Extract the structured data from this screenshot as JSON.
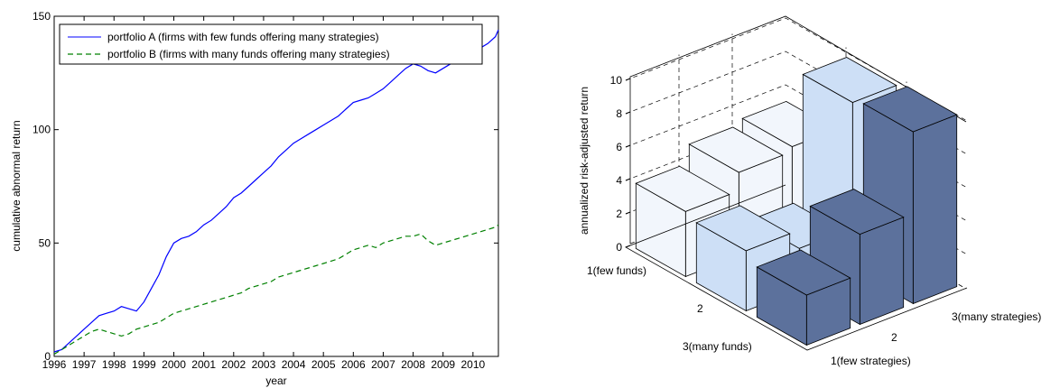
{
  "chart_data": [
    {
      "type": "line",
      "xlabel": "year",
      "ylabel": "cumulative abnormal return",
      "xlim": [
        1996,
        2010.85
      ],
      "ylim": [
        0,
        150
      ],
      "x_ticks": [
        "1996",
        "1997",
        "1998",
        "1999",
        "2000",
        "2001",
        "2002",
        "2003",
        "2004",
        "2005",
        "2006",
        "2007",
        "2008",
        "2009",
        "2010"
      ],
      "y_ticks": [
        "0",
        "50",
        "100",
        "150"
      ],
      "grid": false,
      "legend_position": "top-left",
      "series": [
        {
          "name": "portfolio A (firms with few funds offering many strategies)",
          "color": "#0000ff",
          "style": "solid",
          "x": [
            1996.0,
            1996.25,
            1996.5,
            1996.75,
            1997.0,
            1997.25,
            1997.5,
            1997.75,
            1998.0,
            1998.25,
            1998.5,
            1998.75,
            1999.0,
            1999.25,
            1999.5,
            1999.75,
            2000.0,
            2000.25,
            2000.5,
            2000.75,
            2001.0,
            2001.25,
            2001.5,
            2001.75,
            2002.0,
            2002.25,
            2002.5,
            2002.75,
            2003.0,
            2003.25,
            2003.5,
            2003.75,
            2004.0,
            2004.25,
            2004.5,
            2004.75,
            2005.0,
            2005.25,
            2005.5,
            2005.75,
            2006.0,
            2006.25,
            2006.5,
            2006.75,
            2007.0,
            2007.25,
            2007.5,
            2007.75,
            2008.0,
            2008.25,
            2008.5,
            2008.75,
            2009.0,
            2009.25,
            2009.5,
            2009.75,
            2010.0,
            2010.25,
            2010.5,
            2010.75,
            2010.85
          ],
          "y": [
            2,
            3,
            6,
            9,
            12,
            15,
            18,
            19,
            20,
            22,
            21,
            20,
            24,
            30,
            36,
            44,
            50,
            52,
            53,
            55,
            58,
            60,
            63,
            66,
            70,
            72,
            75,
            78,
            81,
            84,
            88,
            91,
            94,
            96,
            98,
            100,
            102,
            104,
            106,
            109,
            112,
            113,
            114,
            116,
            118,
            121,
            124,
            127,
            129,
            128,
            126,
            125,
            127,
            129,
            131,
            133,
            135,
            136,
            138,
            141,
            144
          ]
        },
        {
          "name": "portfolio B (firms with many funds offering many strategies)",
          "color": "#008000",
          "style": "dashed",
          "x": [
            1996.0,
            1996.25,
            1996.5,
            1996.75,
            1997.0,
            1997.25,
            1997.5,
            1997.75,
            1998.0,
            1998.25,
            1998.5,
            1998.75,
            1999.0,
            1999.25,
            1999.5,
            1999.75,
            2000.0,
            2000.25,
            2000.5,
            2000.75,
            2001.0,
            2001.25,
            2001.5,
            2001.75,
            2002.0,
            2002.25,
            2002.5,
            2002.75,
            2003.0,
            2003.25,
            2003.5,
            2003.75,
            2004.0,
            2004.25,
            2004.5,
            2004.75,
            2005.0,
            2005.25,
            2005.5,
            2005.75,
            2006.0,
            2006.25,
            2006.5,
            2006.75,
            2007.0,
            2007.25,
            2007.5,
            2007.75,
            2008.0,
            2008.25,
            2008.5,
            2008.75,
            2009.0,
            2009.25,
            2009.5,
            2009.75,
            2010.0,
            2010.25,
            2010.5,
            2010.75,
            2010.85
          ],
          "y": [
            1,
            3,
            5,
            7,
            9,
            11,
            12,
            11,
            10,
            9,
            10,
            12,
            13,
            14,
            15,
            17,
            19,
            20,
            21,
            22,
            23,
            24,
            25,
            26,
            27,
            28,
            30,
            31,
            32,
            33,
            35,
            36,
            37,
            38,
            39,
            40,
            41,
            42,
            43,
            45,
            47,
            48,
            49,
            48,
            50,
            51,
            52,
            53,
            53,
            54,
            51,
            49,
            50,
            51,
            52,
            53,
            54,
            55,
            56,
            57,
            58
          ]
        }
      ]
    },
    {
      "type": "bar3d",
      "zlabel": "annualized risk-adjusted return",
      "z_ticks": [
        "0",
        "2",
        "4",
        "6",
        "8",
        "10"
      ],
      "zlim": [
        0,
        10
      ],
      "row_labels": [
        "1(few funds)",
        "2",
        "3(many funds)"
      ],
      "col_labels": [
        "1(few strategies)",
        "2",
        "3(many strategies)"
      ],
      "colors": [
        "#f2f6fc",
        "#cddff6",
        "#5c719c"
      ],
      "values": [
        [
          5.3,
          10.0,
          10.3
        ],
        [
          5.0,
          2.5,
          5.4
        ],
        [
          3.9,
          3.6,
          3.0
        ]
      ]
    }
  ]
}
